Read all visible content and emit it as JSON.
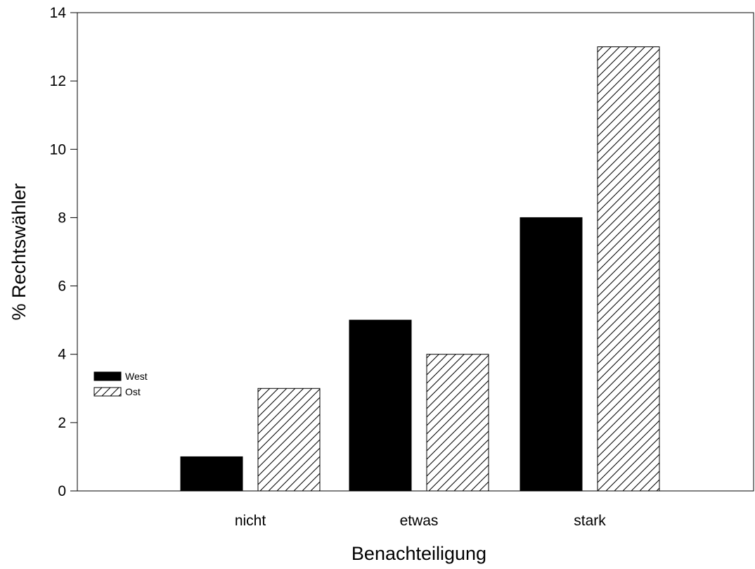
{
  "chart_data": {
    "type": "bar",
    "categories": [
      "nicht",
      "etwas",
      "stark"
    ],
    "series": [
      {
        "name": "West",
        "values": [
          1,
          5,
          8
        ],
        "fill": "solid",
        "color": "#000000"
      },
      {
        "name": "Ost",
        "values": [
          3,
          4,
          13
        ],
        "fill": "hatched",
        "color": "#000000"
      }
    ],
    "xlabel": "Benachteiligung",
    "ylabel": "% Rechtswähler",
    "ylim": [
      0,
      14
    ],
    "yticks": [
      "0",
      "2",
      "4",
      "6",
      "8",
      "10",
      "12",
      "14"
    ],
    "grid": false,
    "legend_position": "middle-left"
  }
}
